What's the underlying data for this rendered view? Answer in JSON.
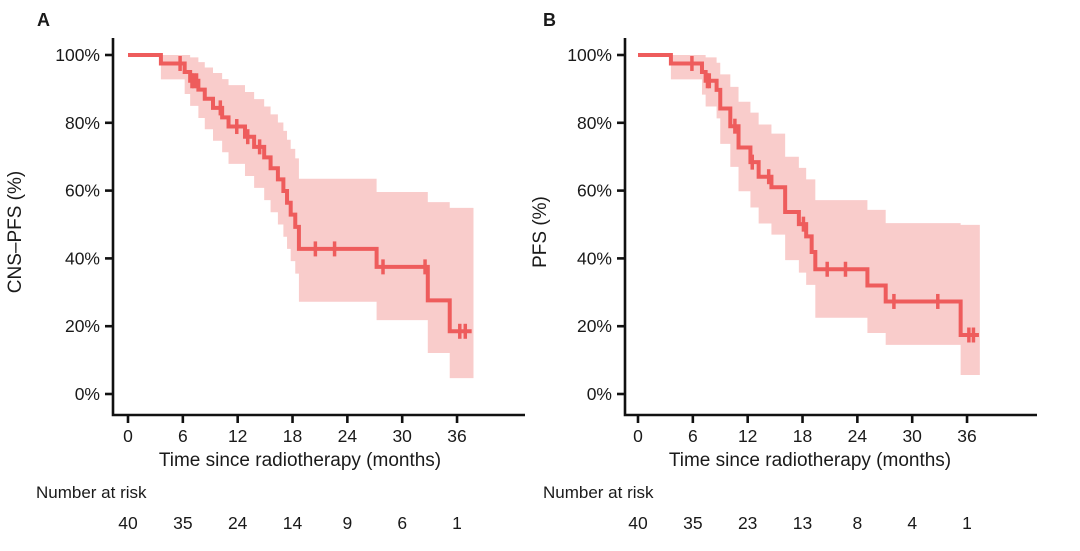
{
  "figure": {
    "background": "#ffffff",
    "curve_color": "#ee5c5c",
    "ci_band_color": "#f9cccb",
    "axis_color": "#111111",
    "text_color": "#1a1a1a"
  },
  "chart_data": [
    {
      "type": "line",
      "subtype": "kaplan-meier-step",
      "panel_label": "A",
      "xlabel": "Time since radiotherapy (months)",
      "ylabel": "CNS–PFS (%)",
      "xlim": [
        0,
        39
      ],
      "ylim": [
        0,
        100
      ],
      "grid": false,
      "legend": "none",
      "x_ticks": [
        0,
        6,
        12,
        18,
        24,
        30,
        36
      ],
      "y_ticks": [
        {
          "v": 0,
          "label": "0%"
        },
        {
          "v": 20,
          "label": "20%"
        },
        {
          "v": 40,
          "label": "40%"
        },
        {
          "v": 60,
          "label": "60%"
        },
        {
          "v": 80,
          "label": "80%"
        },
        {
          "v": 100,
          "label": "100%"
        }
      ],
      "steps": [
        [
          0,
          100
        ],
        [
          3.6,
          97.5
        ],
        [
          6.2,
          95.0
        ],
        [
          6.8,
          92.4
        ],
        [
          7.7,
          89.8
        ],
        [
          8.4,
          87.1
        ],
        [
          9.3,
          84.4
        ],
        [
          10.3,
          81.6
        ],
        [
          11.0,
          78.9
        ],
        [
          12.8,
          75.9
        ],
        [
          13.8,
          72.9
        ],
        [
          14.9,
          69.8
        ],
        [
          15.6,
          66.6
        ],
        [
          16.4,
          63.3
        ],
        [
          17.0,
          59.9
        ],
        [
          17.4,
          56.4
        ],
        [
          17.8,
          52.9
        ],
        [
          18.3,
          49.3
        ],
        [
          18.7,
          42.8
        ],
        [
          27.2,
          37.5
        ],
        [
          32.8,
          27.6
        ],
        [
          35.2,
          18.5
        ]
      ],
      "curve_end": 37.6,
      "censor_times": [
        5.7,
        7.0,
        7.2,
        7.5,
        10.1,
        11.9,
        13.1,
        14.4,
        20.5,
        22.6,
        27.9,
        32.5,
        36.3,
        36.9
      ],
      "ci_band": [
        [
          3.6,
          92.8,
          100
        ],
        [
          6.2,
          88.5,
          100
        ],
        [
          6.8,
          85.0,
          99.3
        ],
        [
          7.7,
          81.4,
          97.9
        ],
        [
          8.4,
          78.1,
          96.3
        ],
        [
          9.3,
          74.7,
          94.7
        ],
        [
          10.3,
          71.3,
          92.9
        ],
        [
          11.0,
          67.9,
          91.1
        ],
        [
          12.8,
          64.3,
          89.1
        ],
        [
          13.8,
          60.8,
          87.0
        ],
        [
          14.9,
          57.2,
          84.8
        ],
        [
          15.6,
          53.6,
          82.5
        ],
        [
          16.4,
          50.0,
          80.1
        ],
        [
          17.0,
          46.4,
          77.6
        ],
        [
          17.4,
          42.8,
          75.0
        ],
        [
          17.8,
          39.2,
          72.3
        ],
        [
          18.3,
          35.5,
          69.5
        ],
        [
          18.7,
          27.2,
          63.5
        ],
        [
          27.2,
          21.8,
          59.6
        ],
        [
          32.8,
          12.1,
          56.6
        ],
        [
          35.2,
          4.7,
          54.9
        ]
      ],
      "band_end": 37.8,
      "number_at_risk": {
        "label": "Number at risk",
        "times": [
          0,
          6,
          12,
          18,
          24,
          30,
          36
        ],
        "counts": [
          40,
          35,
          24,
          14,
          9,
          6,
          1
        ]
      }
    },
    {
      "type": "line",
      "subtype": "kaplan-meier-step",
      "panel_label": "B",
      "xlabel": "Time since radiotherapy (months)",
      "ylabel": "PFS (%)",
      "xlim": [
        0,
        39
      ],
      "ylim": [
        0,
        100
      ],
      "grid": false,
      "legend": "none",
      "x_ticks": [
        0,
        6,
        12,
        18,
        24,
        30,
        36
      ],
      "y_ticks": [
        {
          "v": 0,
          "label": "0%"
        },
        {
          "v": 20,
          "label": "20%"
        },
        {
          "v": 40,
          "label": "40%"
        },
        {
          "v": 60,
          "label": "60%"
        },
        {
          "v": 80,
          "label": "80%"
        },
        {
          "v": 100,
          "label": "100%"
        }
      ],
      "steps": [
        [
          0,
          100
        ],
        [
          3.6,
          97.5
        ],
        [
          7.0,
          95.0
        ],
        [
          7.4,
          92.4
        ],
        [
          8.6,
          89.7
        ],
        [
          9.0,
          84.2
        ],
        [
          10.1,
          79.0
        ],
        [
          11.0,
          72.7
        ],
        [
          12.3,
          68.4
        ],
        [
          13.2,
          64.1
        ],
        [
          14.6,
          61.0
        ],
        [
          16.1,
          53.7
        ],
        [
          17.6,
          50.1
        ],
        [
          18.4,
          46.5
        ],
        [
          19.0,
          41.9
        ],
        [
          19.4,
          36.8
        ],
        [
          25.1,
          32.0
        ],
        [
          27.1,
          27.3
        ],
        [
          35.3,
          17.4
        ]
      ],
      "curve_end": 37.3,
      "censor_times": [
        5.9,
        7.6,
        7.8,
        10.6,
        12.5,
        14.3,
        18.1,
        20.7,
        22.7,
        28.0,
        32.8,
        36.2,
        36.7
      ],
      "ci_band": [
        [
          3.6,
          92.8,
          100
        ],
        [
          7.0,
          88.3,
          100
        ],
        [
          7.4,
          84.8,
          99.3
        ],
        [
          8.6,
          81.3,
          97.7
        ],
        [
          9.0,
          73.8,
          94.3
        ],
        [
          10.1,
          67.0,
          90.6
        ],
        [
          11.0,
          59.8,
          86.2
        ],
        [
          12.3,
          55.0,
          83.0
        ],
        [
          13.2,
          50.3,
          79.5
        ],
        [
          14.6,
          47.0,
          76.8
        ],
        [
          16.1,
          39.5,
          70.0
        ],
        [
          17.6,
          35.8,
          66.7
        ],
        [
          18.4,
          32.2,
          63.3
        ],
        [
          19.4,
          22.5,
          57.2
        ],
        [
          25.1,
          18.0,
          54.3
        ],
        [
          27.1,
          14.5,
          50.4
        ],
        [
          35.3,
          5.6,
          49.9
        ]
      ],
      "band_end": 37.4,
      "number_at_risk": {
        "label": "Number at risk",
        "times": [
          0,
          6,
          12,
          18,
          24,
          30,
          36
        ],
        "counts": [
          40,
          35,
          23,
          13,
          8,
          4,
          1
        ]
      }
    }
  ]
}
